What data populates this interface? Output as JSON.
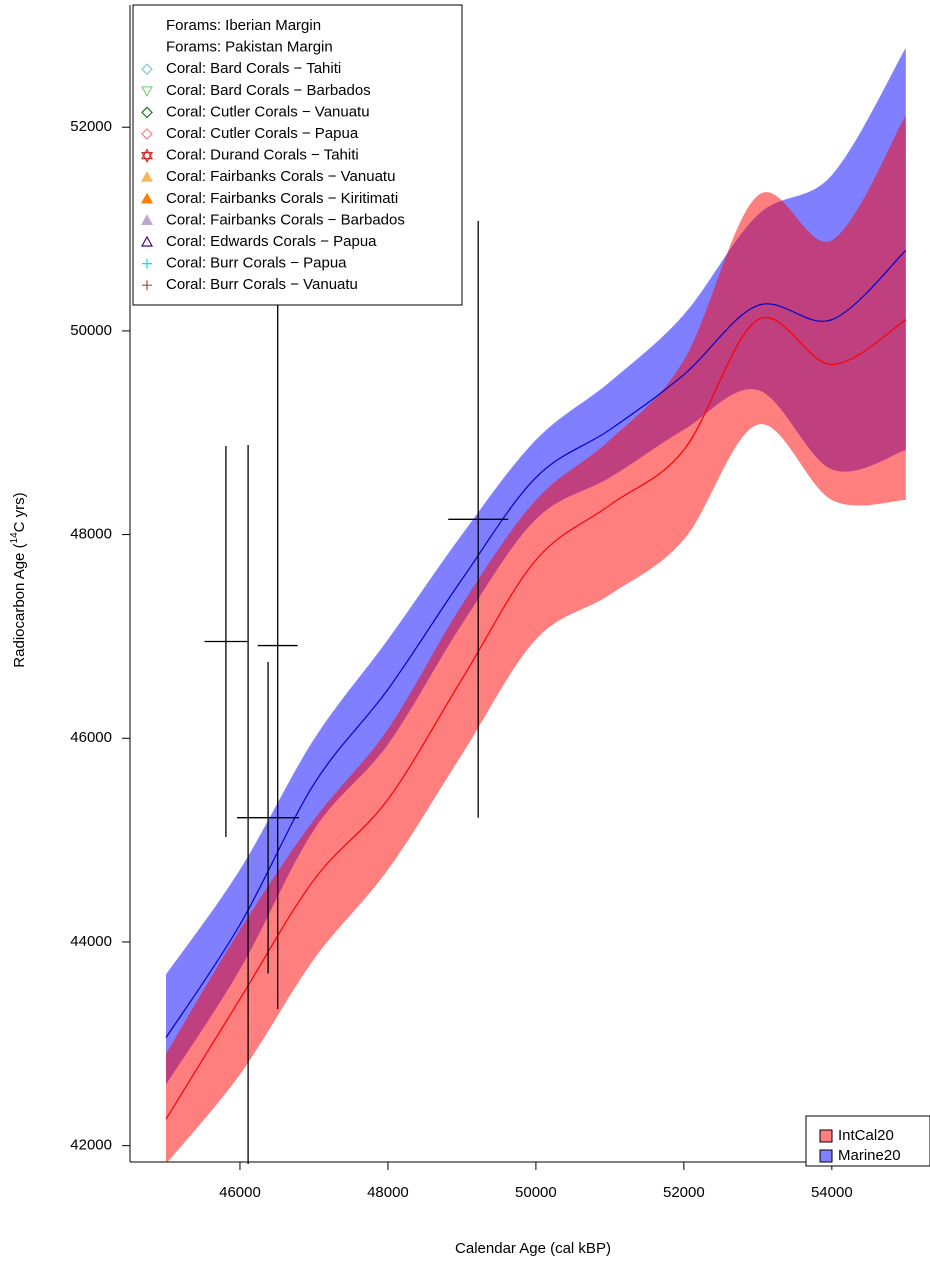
{
  "chart_data": {
    "type": "band",
    "x_label": "Calendar Age (cal kBP)",
    "y_label": {
      "before": "Radiocarbon Age (",
      "sup": "14",
      "after": "C yrs)"
    },
    "xlim": [
      44500,
      55300
    ],
    "ylim": [
      41800,
      53200
    ],
    "xticks": [
      46000,
      48000,
      50000,
      52000,
      54000
    ],
    "yticks": [
      42000,
      44000,
      46000,
      48000,
      50000,
      52000
    ],
    "band_opacity": 0.5,
    "x": [
      45000,
      46000,
      47000,
      48000,
      49000,
      50000,
      51000,
      52000,
      53000,
      54000,
      55000
    ],
    "series": [
      {
        "name": "Marine20",
        "color": "#0000ff",
        "line_color": "#0000cd",
        "values": [
          43060,
          44170,
          45550,
          46480,
          47560,
          48560,
          49030,
          49570,
          50250,
          50110,
          50790
        ],
        "upper": [
          43680,
          44710,
          45990,
          46970,
          48000,
          48930,
          49500,
          50160,
          51140,
          51530,
          52780
        ],
        "lower": [
          42600,
          43730,
          45100,
          45940,
          47120,
          48150,
          48560,
          49030,
          49420,
          48640,
          48830
        ]
      },
      {
        "name": "IntCal20",
        "color": "#ff0000",
        "line_color": "#ff0000",
        "values": [
          42260,
          43440,
          44610,
          45400,
          46580,
          47750,
          48290,
          48830,
          50110,
          49670,
          50110
        ],
        "upper": [
          42900,
          44120,
          45200,
          46090,
          47310,
          48340,
          48930,
          49710,
          51330,
          50890,
          52120
        ],
        "lower": [
          41820,
          42700,
          43830,
          44710,
          45840,
          46970,
          47410,
          47950,
          49080,
          48340,
          48340
        ]
      }
    ],
    "points": [
      {
        "x": 45810,
        "y": 46950,
        "xerr": 290,
        "yerr": 1920
      },
      {
        "x": 46110,
        "y": 45350,
        "xerr": null,
        "yerr": 3530
      },
      {
        "x": 46510,
        "y": 46910,
        "xerr": 270,
        "yerr": 3570
      },
      {
        "x": 46380,
        "y": 45220,
        "xerr": 420,
        "yerr": 1530
      },
      {
        "x": 49220,
        "y": 48150,
        "xerr": 405,
        "yerr": 2930
      }
    ],
    "key_legend": [
      {
        "label": "Forams: Iberian Margin",
        "shape": null,
        "color": null
      },
      {
        "label": "Forams: Pakistan Margin",
        "shape": null,
        "color": null
      },
      {
        "label": "Coral: Bard Corals − Tahiti",
        "shape": "diamond",
        "color": "#7fc6d6"
      },
      {
        "label": "Coral: Bard Corals − Barbados",
        "shape": "tri-down",
        "color": "#7ed37e"
      },
      {
        "label": "Coral: Cutler Corals − Vanuatu",
        "shape": "diamond",
        "color": "#1b7a1b"
      },
      {
        "label": "Coral: Cutler Corals − Papua",
        "shape": "diamond",
        "color": "#f08080"
      },
      {
        "label": "Coral: Durand Corals − Tahiti",
        "shape": "star",
        "color": "#d62728"
      },
      {
        "label": "Coral: Fairbanks Corals − Vanuatu",
        "shape": "tri-filled",
        "color": "#f5b860"
      },
      {
        "label": "Coral: Fairbanks Corals − Kiritimati",
        "shape": "tri-filled",
        "color": "#ff7f00"
      },
      {
        "label": "Coral: Fairbanks Corals − Barbados",
        "shape": "tri-filled",
        "color": "#c0a6d0"
      },
      {
        "label": "Coral: Edwards Corals − Papua",
        "shape": "tri-up",
        "color": "#4b0082"
      },
      {
        "label": "Coral: Burr Corals − Papua",
        "shape": "plus",
        "color": "#00e5e5"
      },
      {
        "label": "Coral: Burr Corals − Vanuatu",
        "shape": "plus",
        "color": "#a0522d"
      }
    ]
  }
}
